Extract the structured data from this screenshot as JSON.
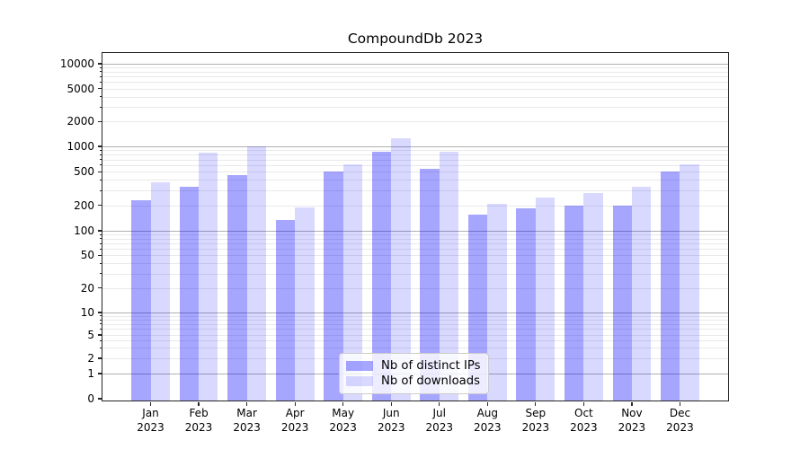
{
  "title": "CompoundDb 2023",
  "legend": {
    "items": [
      {
        "label": "Nb of distinct IPs"
      },
      {
        "label": "Nb of downloads"
      }
    ]
  },
  "colors": {
    "series_distinct_ips": "rgba(0,0,255,0.35)",
    "series_downloads": "rgba(0,0,255,0.15)",
    "grid_major": "#b0b0b0",
    "grid_minor": "#e9e9e9",
    "spine": "#262626",
    "text": "#000000"
  },
  "chart_data": {
    "type": "bar",
    "title": "CompoundDb 2023",
    "categories": [
      "Jan 2023",
      "Feb 2023",
      "Mar 2023",
      "Apr 2023",
      "May 2023",
      "Jun 2023",
      "Jul 2023",
      "Aug 2023",
      "Sep 2023",
      "Oct 2023",
      "Nov 2023",
      "Dec 2023"
    ],
    "series": [
      {
        "name": "Nb of distinct IPs",
        "color": "rgba(0,0,255,0.35)",
        "values": [
          230,
          330,
          460,
          135,
          500,
          860,
          540,
          155,
          185,
          200,
          200,
          500
        ]
      },
      {
        "name": "Nb of downloads",
        "color": "rgba(0,0,255,0.15)",
        "values": [
          380,
          850,
          1000,
          190,
          620,
          1250,
          870,
          210,
          250,
          280,
          330,
          620
        ]
      }
    ],
    "xlabel": "",
    "ylabel": "",
    "yscale": "symlog",
    "yticks": [
      0,
      1,
      2,
      5,
      10,
      20,
      50,
      100,
      200,
      500,
      1000,
      2000,
      5000,
      10000
    ],
    "ylim": [
      0,
      13500
    ],
    "grid": "both",
    "legend_position": "lower center"
  }
}
